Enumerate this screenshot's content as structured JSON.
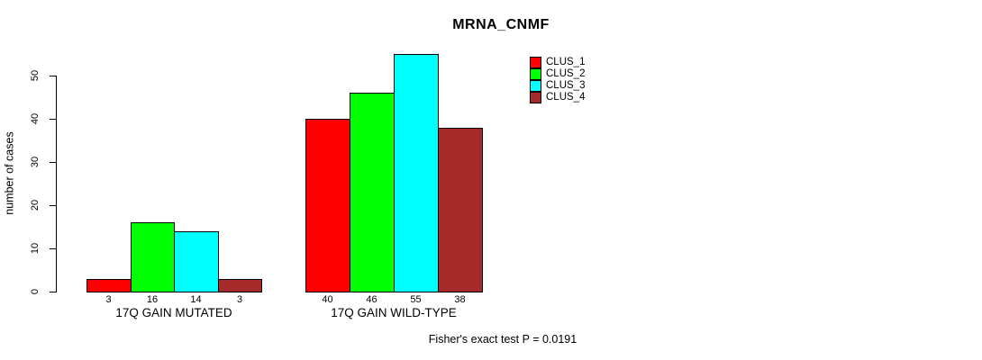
{
  "page": {
    "background_color": "#FFFFFF",
    "text_color": "#000000"
  },
  "chart_data": {
    "type": "bar",
    "title": "MRNA_CNMF",
    "ylabel": "number of cases",
    "xlabel": "",
    "categories": [
      "17Q GAIN MUTATED",
      "17Q GAIN WILD-TYPE"
    ],
    "series": [
      {
        "name": "CLUS_1",
        "color": "#FF0000",
        "values": [
          3,
          40
        ]
      },
      {
        "name": "CLUS_2",
        "color": "#00FF00",
        "values": [
          16,
          46
        ]
      },
      {
        "name": "CLUS_3",
        "color": "#00FFFF",
        "values": [
          14,
          55
        ]
      },
      {
        "name": "CLUS_4",
        "color": "#A52A2A",
        "values": [
          3,
          38
        ]
      }
    ],
    "yticks": [
      0,
      10,
      20,
      30,
      40,
      50
    ],
    "ylim": [
      0,
      55
    ],
    "show_bar_value_labels": true,
    "grid": false,
    "legend_position": "top-right",
    "annotation": "Fisher's exact test P = 0.0191"
  }
}
